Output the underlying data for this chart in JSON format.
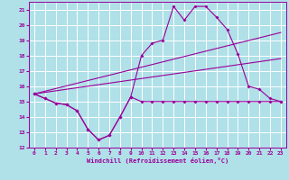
{
  "xlabel": "Windchill (Refroidissement éolien,°C)",
  "bg_color": "#b0e0e8",
  "grid_color": "#ffffff",
  "line_color": "#990099",
  "xlim": [
    -0.5,
    23.5
  ],
  "ylim": [
    12,
    21.5
  ],
  "yticks": [
    12,
    13,
    14,
    15,
    16,
    17,
    18,
    19,
    20,
    21
  ],
  "xticks": [
    0,
    1,
    2,
    3,
    4,
    5,
    6,
    7,
    8,
    9,
    10,
    11,
    12,
    13,
    14,
    15,
    16,
    17,
    18,
    19,
    20,
    21,
    22,
    23
  ],
  "line1_x": [
    0,
    1,
    2,
    3,
    4,
    5,
    6,
    7,
    8,
    9,
    10,
    11,
    12,
    13,
    14,
    15,
    16,
    17,
    18,
    19,
    20,
    21,
    22,
    23
  ],
  "line1_y": [
    15.5,
    15.2,
    14.9,
    14.8,
    14.4,
    13.2,
    12.5,
    12.8,
    14.0,
    15.3,
    15.0,
    15.0,
    15.0,
    15.0,
    15.0,
    15.0,
    15.0,
    15.0,
    15.0,
    15.0,
    15.0,
    15.0,
    15.0,
    15.0
  ],
  "line2_x": [
    0,
    1,
    2,
    3,
    4,
    5,
    6,
    7,
    8,
    9,
    10,
    11,
    12,
    13,
    14,
    15,
    16,
    17,
    18,
    19,
    20,
    21,
    22,
    23
  ],
  "line2_y": [
    15.5,
    15.2,
    14.9,
    14.8,
    14.4,
    13.2,
    12.5,
    12.8,
    14.0,
    15.3,
    18.0,
    18.8,
    19.0,
    21.2,
    20.3,
    21.2,
    21.2,
    20.5,
    19.7,
    18.1,
    16.0,
    15.8,
    15.2,
    15.0
  ],
  "line3_x": [
    0,
    23
  ],
  "line3_y": [
    15.5,
    19.5
  ],
  "line4_x": [
    0,
    23
  ],
  "line4_y": [
    15.5,
    17.8
  ]
}
